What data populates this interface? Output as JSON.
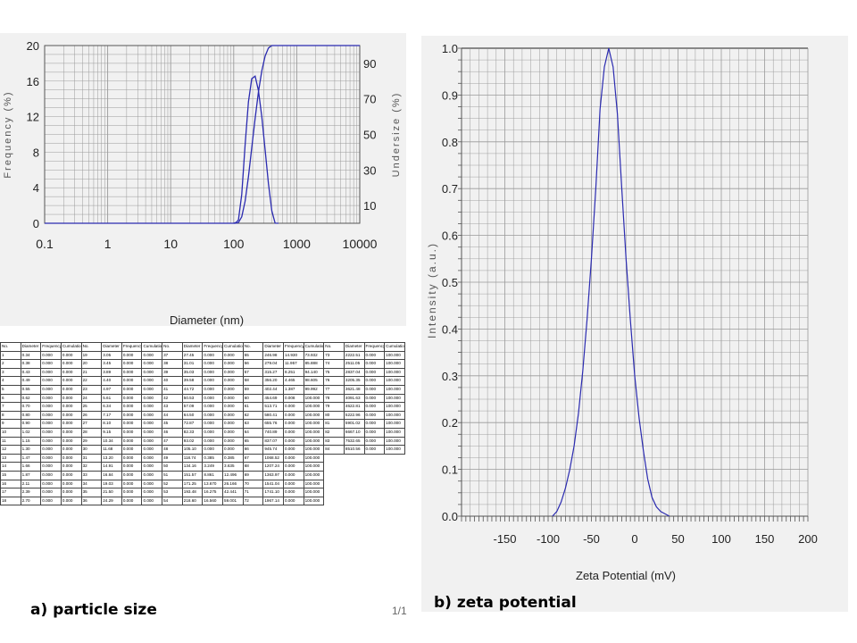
{
  "captions": {
    "a": "a) particle size",
    "b": "b) zeta potential",
    "pager": "1/1"
  },
  "colors": {
    "line": "#2b2bb0",
    "grid": "#9a9a9a",
    "axis": "#555555",
    "panel_bg": "#f1f1f1"
  },
  "chart_data": [
    {
      "type": "line",
      "xscale": "log",
      "xlim": [
        0.1,
        10000
      ],
      "ylim": [
        0,
        20
      ],
      "ylim_right": [
        0,
        100
      ],
      "xlabel": "Diameter (nm)",
      "ylabel": "Frequency (%)",
      "ylabel_right": "Undersize (%)",
      "x_ticks": [
        "0.1",
        "1",
        "10",
        "100",
        "1000",
        "10000"
      ],
      "y_ticks": [
        "0",
        "4",
        "8",
        "12",
        "16",
        "20"
      ],
      "y_ticks_right": [
        "10",
        "30",
        "50",
        "70",
        "90"
      ],
      "grid": true,
      "series": [
        {
          "axis": "left",
          "x": [
            0.1,
            0.3,
            100,
            110,
            118.74,
            134.16,
            151.57,
            171.25,
            193.48,
            218.6,
            246.98,
            279.04,
            315.27,
            356.2,
            402.44,
            454.69,
            513.71
          ],
          "y": [
            0,
            0,
            0,
            0.1,
            0.385,
            3.249,
            8.861,
            13.67,
            16.275,
            16.56,
            14.93,
            11.957,
            8.251,
            4.465,
            1.387,
            0.008,
            0
          ]
        },
        {
          "axis": "right",
          "x": [
            100,
            105.1,
            118.74,
            134.16,
            151.57,
            171.25,
            193.48,
            218.6,
            246.98,
            279.04,
            315.27,
            356.2,
            402.44,
            454.69,
            10000
          ],
          "y": [
            0,
            0,
            0.385,
            3.635,
            12.496,
            26.166,
            42.441,
            59.001,
            73.932,
            85.888,
            94.14,
            98.605,
            99.992,
            100,
            100
          ]
        }
      ]
    },
    {
      "type": "line",
      "xlim": [
        -200,
        200
      ],
      "ylim": [
        0,
        1.0
      ],
      "xlabel": "Zeta Potential (mV)",
      "ylabel": "Intensity (a.u.)",
      "x_ticks": [
        "-150",
        "-100",
        "-50",
        "0",
        "50",
        "100",
        "150",
        "200"
      ],
      "y_ticks": [
        "0.0",
        "0.1",
        "0.2",
        "0.3",
        "0.4",
        "0.5",
        "0.6",
        "0.7",
        "0.8",
        "0.9",
        "1.0"
      ],
      "grid": true,
      "series": [
        {
          "x": [
            -95,
            -90,
            -85,
            -80,
            -75,
            -70,
            -65,
            -60,
            -55,
            -50,
            -45,
            -40,
            -35,
            -30,
            -25,
            -20,
            -15,
            -10,
            -5,
            0,
            5,
            10,
            15,
            20,
            25,
            30,
            35,
            40
          ],
          "y": [
            0.0,
            0.01,
            0.03,
            0.06,
            0.1,
            0.15,
            0.22,
            0.31,
            0.42,
            0.55,
            0.7,
            0.87,
            0.96,
            1.0,
            0.96,
            0.86,
            0.7,
            0.55,
            0.42,
            0.3,
            0.21,
            0.14,
            0.08,
            0.04,
            0.02,
            0.01,
            0.005,
            0.0
          ]
        }
      ]
    }
  ],
  "table": {
    "header": [
      "No.",
      "Diameter",
      "Frequency",
      "Cumulation"
    ],
    "groups": [
      [
        [
          "1",
          "0.34",
          "0.000",
          "0.000"
        ],
        [
          "2",
          "0.38",
          "0.000",
          "0.000"
        ],
        [
          "3",
          "0.43",
          "0.000",
          "0.000"
        ],
        [
          "4",
          "0.49",
          "0.000",
          "0.000"
        ],
        [
          "5",
          "0.55",
          "0.000",
          "0.000"
        ],
        [
          "6",
          "0.62",
          "0.000",
          "0.000"
        ],
        [
          "7",
          "0.70",
          "0.000",
          "0.000"
        ],
        [
          "8",
          "0.80",
          "0.000",
          "0.000"
        ],
        [
          "9",
          "0.90",
          "0.000",
          "0.000"
        ],
        [
          "10",
          "1.02",
          "0.000",
          "0.000"
        ],
        [
          "11",
          "1.15",
          "0.000",
          "0.000"
        ],
        [
          "12",
          "1.30",
          "0.000",
          "0.000"
        ],
        [
          "13",
          "1.47",
          "0.000",
          "0.000"
        ],
        [
          "14",
          "1.66",
          "0.000",
          "0.000"
        ],
        [
          "15",
          "1.87",
          "0.000",
          "0.000"
        ],
        [
          "16",
          "2.11",
          "0.000",
          "0.000"
        ],
        [
          "17",
          "2.39",
          "0.000",
          "0.000"
        ],
        [
          "18",
          "2.70",
          "0.000",
          "0.000"
        ]
      ],
      [
        [
          "19",
          "3.05",
          "0.000",
          "0.000"
        ],
        [
          "20",
          "3.45",
          "0.000",
          "0.000"
        ],
        [
          "21",
          "3.89",
          "0.000",
          "0.000"
        ],
        [
          "22",
          "4.40",
          "0.000",
          "0.000"
        ],
        [
          "23",
          "4.97",
          "0.000",
          "0.000"
        ],
        [
          "24",
          "5.61",
          "0.000",
          "0.000"
        ],
        [
          "25",
          "6.34",
          "0.000",
          "0.000"
        ],
        [
          "26",
          "7.17",
          "0.000",
          "0.000"
        ],
        [
          "27",
          "8.10",
          "0.000",
          "0.000"
        ],
        [
          "28",
          "9.15",
          "0.000",
          "0.000"
        ],
        [
          "29",
          "10.34",
          "0.000",
          "0.000"
        ],
        [
          "30",
          "11.68",
          "0.000",
          "0.000"
        ],
        [
          "31",
          "13.20",
          "0.000",
          "0.000"
        ],
        [
          "32",
          "14.91",
          "0.000",
          "0.000"
        ],
        [
          "33",
          "16.84",
          "0.000",
          "0.000"
        ],
        [
          "34",
          "19.03",
          "0.000",
          "0.000"
        ],
        [
          "35",
          "21.50",
          "0.000",
          "0.000"
        ],
        [
          "36",
          "24.29",
          "0.000",
          "0.000"
        ]
      ],
      [
        [
          "37",
          "27.45",
          "0.000",
          "0.000"
        ],
        [
          "38",
          "31.01",
          "0.000",
          "0.000"
        ],
        [
          "39",
          "35.03",
          "0.000",
          "0.000"
        ],
        [
          "40",
          "39.58",
          "0.000",
          "0.000"
        ],
        [
          "41",
          "44.72",
          "0.000",
          "0.000"
        ],
        [
          "42",
          "50.53",
          "0.000",
          "0.000"
        ],
        [
          "43",
          "57.09",
          "0.000",
          "0.000"
        ],
        [
          "44",
          "64.50",
          "0.000",
          "0.000"
        ],
        [
          "45",
          "72.87",
          "0.000",
          "0.000"
        ],
        [
          "46",
          "82.33",
          "0.000",
          "0.000"
        ],
        [
          "47",
          "93.02",
          "0.000",
          "0.000"
        ],
        [
          "48",
          "105.10",
          "0.000",
          "0.000"
        ],
        [
          "49",
          "118.74",
          "0.385",
          "0.385"
        ],
        [
          "50",
          "134.16",
          "3.249",
          "3.635"
        ],
        [
          "51",
          "151.57",
          "8.861",
          "12.496"
        ],
        [
          "52",
          "171.25",
          "13.670",
          "26.166"
        ],
        [
          "53",
          "193.48",
          "16.275",
          "42.441"
        ],
        [
          "54",
          "218.60",
          "16.560",
          "59.001"
        ]
      ],
      [
        [
          "55",
          "246.98",
          "14.930",
          "73.932"
        ],
        [
          "56",
          "279.04",
          "11.957",
          "85.888"
        ],
        [
          "57",
          "315.27",
          "8.251",
          "94.140"
        ],
        [
          "58",
          "356.20",
          "4.465",
          "98.605"
        ],
        [
          "59",
          "402.44",
          "1.387",
          "99.992"
        ],
        [
          "60",
          "454.69",
          "0.008",
          "100.000"
        ],
        [
          "61",
          "513.71",
          "0.000",
          "100.000"
        ],
        [
          "62",
          "580.41",
          "0.000",
          "100.000"
        ],
        [
          "63",
          "655.76",
          "0.000",
          "100.000"
        ],
        [
          "64",
          "740.89",
          "0.000",
          "100.000"
        ],
        [
          "65",
          "837.07",
          "0.000",
          "100.000"
        ],
        [
          "66",
          "945.74",
          "0.000",
          "100.000"
        ],
        [
          "67",
          "1068.52",
          "0.000",
          "100.000"
        ],
        [
          "68",
          "1207.24",
          "0.000",
          "100.000"
        ],
        [
          "69",
          "1363.97",
          "0.000",
          "100.000"
        ],
        [
          "70",
          "1541.04",
          "0.000",
          "100.000"
        ],
        [
          "71",
          "1741.10",
          "0.000",
          "100.000"
        ],
        [
          "72",
          "1967.14",
          "0.000",
          "100.000"
        ]
      ],
      [
        [
          "73",
          "2222.51",
          "0.000",
          "100.000"
        ],
        [
          "74",
          "2511.05",
          "0.000",
          "100.000"
        ],
        [
          "75",
          "2837.04",
          "0.000",
          "100.000"
        ],
        [
          "76",
          "3205.35",
          "0.000",
          "100.000"
        ],
        [
          "77",
          "3621.48",
          "0.000",
          "100.000"
        ],
        [
          "78",
          "4091.63",
          "0.000",
          "100.000"
        ],
        [
          "79",
          "4622.81",
          "0.000",
          "100.000"
        ],
        [
          "80",
          "5222.96",
          "0.000",
          "100.000"
        ],
        [
          "81",
          "5901.02",
          "0.000",
          "100.000"
        ],
        [
          "82",
          "6667.10",
          "0.000",
          "100.000"
        ],
        [
          "83",
          "7532.65",
          "0.000",
          "100.000"
        ],
        [
          "84",
          "8510.56",
          "0.000",
          "100.000"
        ]
      ]
    ]
  }
}
